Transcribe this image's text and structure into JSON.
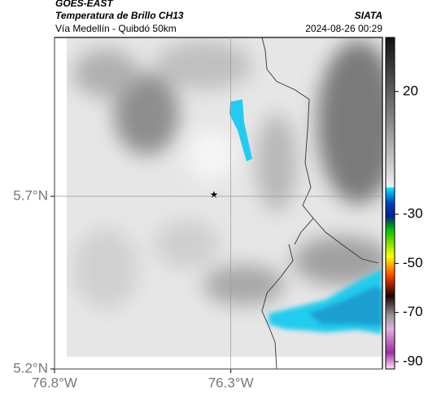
{
  "header": {
    "title": "GOES-EAST",
    "subtitle": "Temperatura de Brillo CH13",
    "region": "Vía Medellín - Quibdó 50km",
    "source": "SIATA",
    "timestamp": "2024-08-26 00:29"
  },
  "map": {
    "xlim": [
      -76.8,
      -75.87
    ],
    "ylim": [
      5.2,
      6.16
    ],
    "xticks": [
      {
        "value": -76.8,
        "label": "76.8°W"
      },
      {
        "value": -76.3,
        "label": "76.3°W"
      }
    ],
    "yticks": [
      {
        "value": 5.7,
        "label": "5.7°N"
      },
      {
        "value": 5.2,
        "label": "5.2°N"
      }
    ]
  },
  "colorbar": {
    "lim": [
      42,
      -93
    ],
    "ticks": [
      20,
      -30,
      -50,
      -70,
      -90
    ]
  }
}
